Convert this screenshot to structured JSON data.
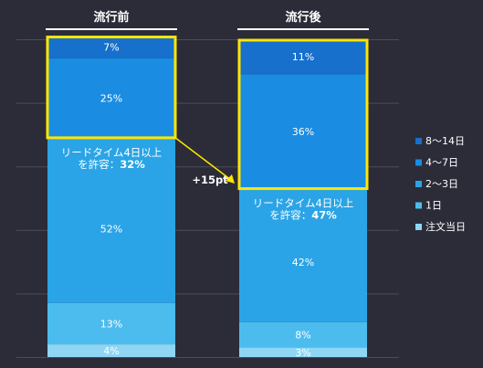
{
  "chart_data": {
    "type": "bar",
    "stacked": true,
    "categories": [
      "流行前",
      "流行後"
    ],
    "series": [
      {
        "name": "注文当日",
        "values": [
          4,
          3
        ],
        "color": "#8ed6f4"
      },
      {
        "name": "1日",
        "values": [
          13,
          8
        ],
        "color": "#4cbcee"
      },
      {
        "name": "2～3日",
        "values": [
          52,
          42
        ],
        "color": "#2aa4e6"
      },
      {
        "name": "4～7日",
        "values": [
          25,
          36
        ],
        "color": "#1a8ce2"
      },
      {
        "name": "8～14日",
        "values": [
          7,
          11
        ],
        "color": "#1670cc"
      }
    ],
    "value_labels": [
      [
        "4%",
        "13%",
        "52%",
        "25%",
        "7%"
      ],
      [
        "3%",
        "8%",
        "42%",
        "36%",
        "11%"
      ]
    ],
    "annotations": [
      {
        "text_line1": "リードタイム4日以上",
        "text_line2_prefix": "を許容：",
        "value": "32%"
      },
      {
        "text_line1": "リードタイム4日以上",
        "text_line2_prefix": "を許容：",
        "value": "47%"
      }
    ],
    "change_label": "+15pt",
    "legend_order": [
      "8～14日",
      "4～7日",
      "2～3日",
      "1日",
      "注文当日"
    ],
    "legend_position": "right",
    "ylim": [
      0,
      100
    ],
    "grid": true,
    "highlight_color": "#ffe600"
  }
}
